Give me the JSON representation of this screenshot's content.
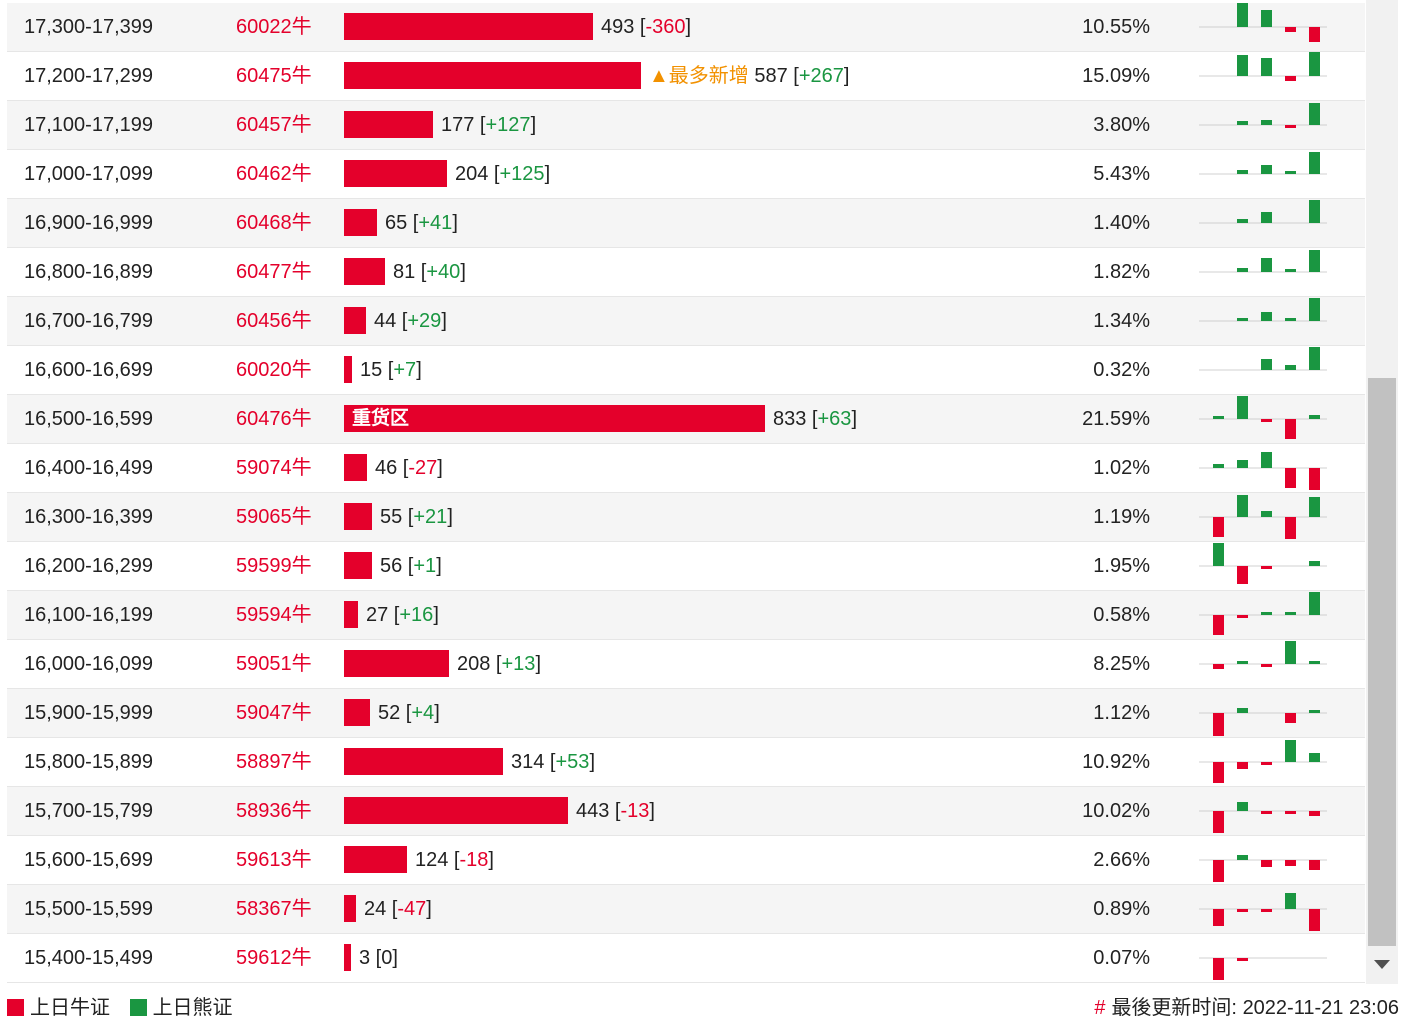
{
  "legend": {
    "bull_label": "上日牛证",
    "bear_label": "上日熊证"
  },
  "footer": {
    "hash": "#",
    "updated_label": "最後更新时间:",
    "updated_time": "2022-11-21 23:06"
  },
  "colors": {
    "bull_red": "#e4002b",
    "bear_green": "#1a9641",
    "tag_orange": "#f29100"
  },
  "rows": [
    {
      "range": "17,300-17,399",
      "code": "60022牛",
      "count": 493,
      "change": "-360",
      "pct": "10.55%",
      "spark": [
        0,
        24,
        17,
        -5,
        -15
      ]
    },
    {
      "range": "17,200-17,299",
      "code": "60475牛",
      "count": 587,
      "change": "+267",
      "tag": "▲最多新增",
      "pct": "15.09%",
      "spark": [
        0,
        21,
        18,
        -5,
        24
      ]
    },
    {
      "range": "17,100-17,199",
      "code": "60457牛",
      "count": 177,
      "change": "+127",
      "pct": "3.80%",
      "spark": [
        0,
        4,
        5,
        -2,
        22
      ]
    },
    {
      "range": "17,000-17,099",
      "code": "60462牛",
      "count": 204,
      "change": "+125",
      "pct": "5.43%",
      "spark": [
        0,
        4,
        9,
        2,
        22
      ]
    },
    {
      "range": "16,900-16,999",
      "code": "60468牛",
      "count": 65,
      "change": "+41",
      "pct": "1.40%",
      "spark": [
        0,
        4,
        11,
        0,
        23
      ]
    },
    {
      "range": "16,800-16,899",
      "code": "60477牛",
      "count": 81,
      "change": "+40",
      "pct": "1.82%",
      "spark": [
        0,
        4,
        14,
        3,
        22
      ]
    },
    {
      "range": "16,700-16,799",
      "code": "60456牛",
      "count": 44,
      "change": "+29",
      "pct": "1.34%",
      "spark": [
        0,
        2,
        9,
        2,
        23
      ]
    },
    {
      "range": "16,600-16,699",
      "code": "60020牛",
      "count": 15,
      "change": "+7",
      "pct": "0.32%",
      "spark": [
        0,
        0,
        11,
        5,
        23
      ]
    },
    {
      "range": "16,500-16,599",
      "code": "60476牛",
      "count": 833,
      "change": "+63",
      "bar_label": "重货区",
      "pct": "21.59%",
      "spark": [
        2,
        23,
        -3,
        -20,
        4
      ]
    },
    {
      "range": "16,400-16,499",
      "code": "59074牛",
      "count": 46,
      "change": "-27",
      "pct": "1.02%",
      "spark": [
        4,
        8,
        16,
        -20,
        -22
      ]
    },
    {
      "range": "16,300-16,399",
      "code": "59065牛",
      "count": 55,
      "change": "+21",
      "pct": "1.19%",
      "spark": [
        -20,
        22,
        6,
        -22,
        20
      ]
    },
    {
      "range": "16,200-16,299",
      "code": "59599牛",
      "count": 56,
      "change": "+1",
      "pct": "1.95%",
      "spark": [
        23,
        -18,
        -2,
        0,
        5
      ]
    },
    {
      "range": "16,100-16,199",
      "code": "59594牛",
      "count": 27,
      "change": "+16",
      "pct": "0.58%",
      "spark": [
        -20,
        -2,
        3,
        3,
        23
      ]
    },
    {
      "range": "16,000-16,099",
      "code": "59051牛",
      "count": 208,
      "change": "+13",
      "pct": "8.25%",
      "spark": [
        -5,
        3,
        -1,
        23,
        2
      ]
    },
    {
      "range": "15,900-15,999",
      "code": "59047牛",
      "count": 52,
      "change": "+4",
      "pct": "1.12%",
      "spark": [
        -23,
        5,
        0,
        -10,
        2
      ]
    },
    {
      "range": "15,800-15,899",
      "code": "58897牛",
      "count": 314,
      "change": "+53",
      "pct": "10.92%",
      "spark": [
        -21,
        -7,
        -2,
        22,
        9
      ]
    },
    {
      "range": "15,700-15,799",
      "code": "58936牛",
      "count": 443,
      "change": "-13",
      "pct": "10.02%",
      "spark": [
        -22,
        9,
        -3,
        -3,
        -5
      ]
    },
    {
      "range": "15,600-15,699",
      "code": "59613牛",
      "count": 124,
      "change": "-18",
      "pct": "2.66%",
      "spark": [
        -22,
        5,
        -7,
        -6,
        -10
      ]
    },
    {
      "range": "15,500-15,599",
      "code": "58367牛",
      "count": 24,
      "change": "-47",
      "pct": "0.89%",
      "spark": [
        -17,
        -2,
        -1,
        16,
        -22
      ]
    },
    {
      "range": "15,400-15,499",
      "code": "59612牛",
      "count": 3,
      "change": "0",
      "pct": "0.07%",
      "spark": [
        -22,
        -2,
        0,
        0,
        0
      ]
    }
  ]
}
